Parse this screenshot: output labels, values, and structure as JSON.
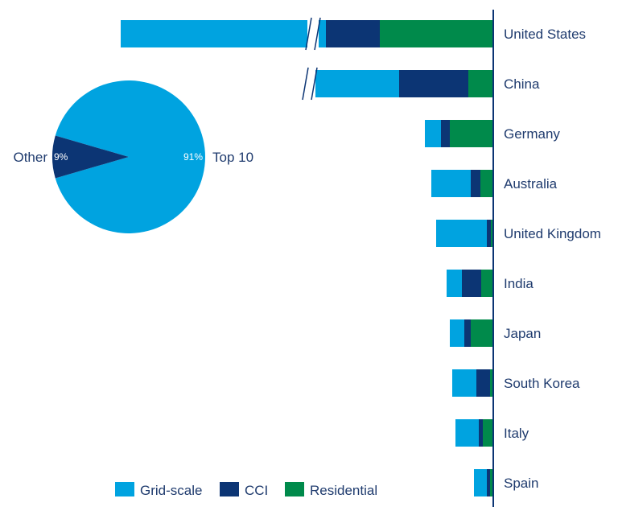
{
  "chart_data": [
    {
      "type": "bar",
      "orientation": "horizontal-stacked",
      "axis_break": "on the Grid-scale segment for United States and China",
      "categories": [
        "United States",
        "China",
        "Germany",
        "Australia",
        "United Kingdom",
        "India",
        "Japan",
        "South Korea",
        "Italy",
        "Spain"
      ],
      "series": [
        {
          "name": "Grid-scale",
          "color": "#00a3e0",
          "values": [
            255,
            110,
            20,
            49,
            63,
            19,
            18,
            30,
            29,
            16
          ]
        },
        {
          "name": "CCI",
          "color": "#0c3574",
          "values": [
            67,
            86,
            11,
            12,
            5,
            24,
            8,
            17,
            5,
            4
          ]
        },
        {
          "name": "Residential",
          "color": "#008a4b",
          "values": [
            141,
            31,
            54,
            16,
            3,
            15,
            28,
            4,
            13,
            4
          ]
        }
      ]
    },
    {
      "type": "pie",
      "slices": [
        {
          "label": "Top 10",
          "value": 91,
          "value_label": "91%",
          "color": "#00a3e0"
        },
        {
          "label": "Other",
          "value": 9,
          "value_label": "9%",
          "color": "#0c3574"
        }
      ]
    }
  ],
  "legend": [
    {
      "label": "Grid-scale",
      "color": "#00a3e0"
    },
    {
      "label": "CCI",
      "color": "#0c3574"
    },
    {
      "label": "Residential",
      "color": "#008a4b"
    }
  ],
  "colors": {
    "text": "#1f3b6e",
    "axis": "#0c3574"
  }
}
